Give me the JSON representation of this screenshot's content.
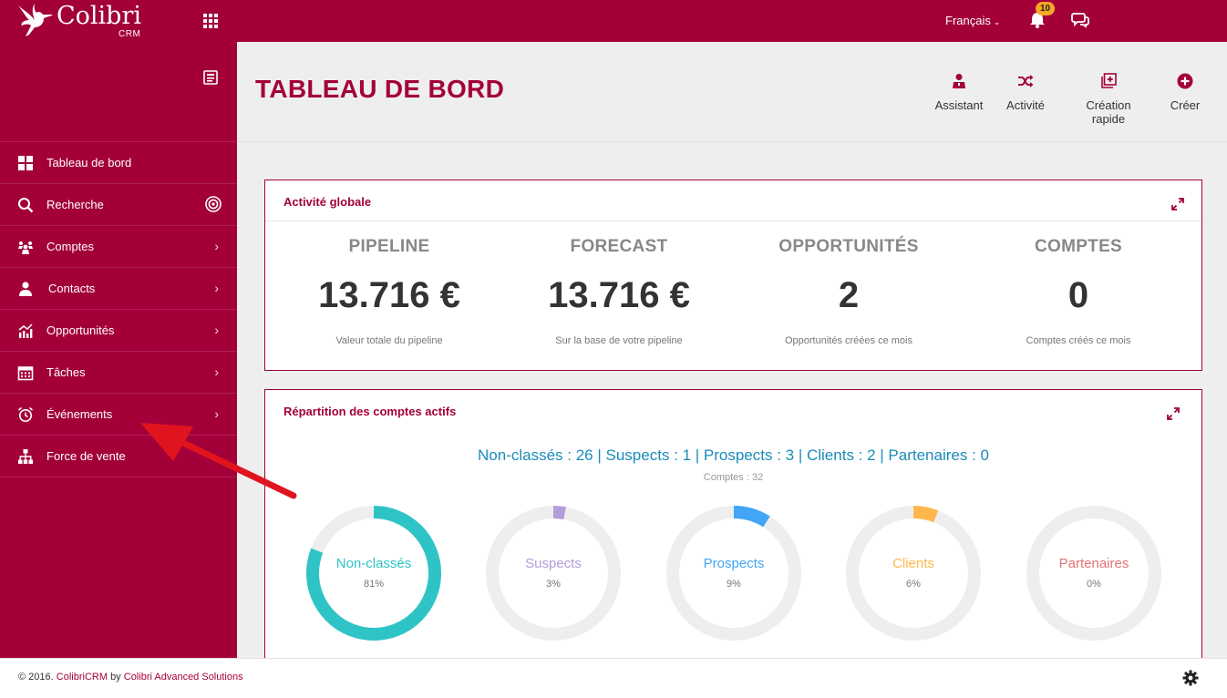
{
  "topbar": {
    "brand": "Colibri",
    "brand_sub": "CRM",
    "language": "Français",
    "notification_count": "10"
  },
  "sidebar": {
    "items": [
      {
        "label": "Tableau de bord",
        "icon": "dashboard-icon"
      },
      {
        "label": "Recherche",
        "icon": "search-icon"
      },
      {
        "label": "Comptes",
        "icon": "accounts-icon"
      },
      {
        "label": "Contacts",
        "icon": "contacts-icon"
      },
      {
        "label": "Opportunités",
        "icon": "chart-icon"
      },
      {
        "label": "Tâches",
        "icon": "calendar-icon"
      },
      {
        "label": "Événements",
        "icon": "alarm-clock-icon"
      },
      {
        "label": "Force de vente",
        "icon": "org-chart-icon"
      }
    ]
  },
  "header": {
    "title": "TABLEAU DE BORD",
    "actions": [
      {
        "label": "Assistant",
        "icon": "assistant-icon"
      },
      {
        "label": "Activité",
        "icon": "shuffle-icon"
      },
      {
        "label": "Création rapide",
        "icon": "quick-create-icon"
      },
      {
        "label": "Créer",
        "icon": "plus-circle-icon"
      }
    ]
  },
  "activity": {
    "title": "Activité globale",
    "stats": [
      {
        "label": "PIPELINE",
        "value": "13.716 €",
        "sub": "Valeur totale du pipeline"
      },
      {
        "label": "FORECAST",
        "value": "13.716 €",
        "sub": "Sur la base de votre pipeline"
      },
      {
        "label": "OPPORTUNITÉS",
        "value": "2",
        "sub": "Opportunités créées ce mois"
      },
      {
        "label": "COMPTES",
        "value": "0",
        "sub": "Comptes créés ce mois"
      }
    ]
  },
  "accounts": {
    "title": "Répartition des comptes actifs",
    "summary": "Non-classés : 26 | Suspects : 1 | Prospects : 3 | Clients : 2 | Partenaires : 0",
    "total": "Comptes : 32",
    "donuts": [
      {
        "name": "Non-classés",
        "pct": "81%",
        "fraction": 0.81,
        "color": "#2ec4c6"
      },
      {
        "name": "Suspects",
        "pct": "3%",
        "fraction": 0.03,
        "color": "#b39ddb"
      },
      {
        "name": "Prospects",
        "pct": "9%",
        "fraction": 0.09,
        "color": "#42a5f5"
      },
      {
        "name": "Clients",
        "pct": "6%",
        "fraction": 0.06,
        "color": "#ffb74d"
      },
      {
        "name": "Partenaires",
        "pct": "0%",
        "fraction": 0.0,
        "color": "#e57373"
      }
    ]
  },
  "footer": {
    "prefix": "© 2016.",
    "product": "ColibriCRM",
    "by": "by",
    "company": "Colibri Advanced Solutions"
  },
  "colors": {
    "brand": "#a3003a",
    "accent_blue": "#1a8cb8"
  }
}
